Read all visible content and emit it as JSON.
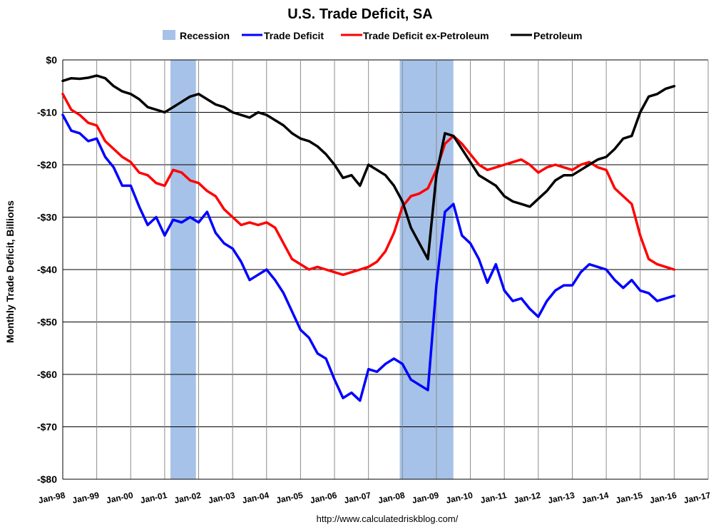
{
  "chart_data": {
    "type": "line",
    "title": "U.S. Trade Deficit, SA",
    "ylabel": "Monthly Trade Deficit, Billions",
    "xlabel": "",
    "source": "http://www.calculatedriskblog.com/",
    "ylim": [
      -80,
      0
    ],
    "y_ticks": [
      0,
      -10,
      -20,
      -30,
      -40,
      -50,
      -60,
      -70,
      -80
    ],
    "y_tick_labels": [
      "$0",
      "-$10",
      "-$20",
      "-$30",
      "-$40",
      "-$50",
      "-$60",
      "-$70",
      "-$80"
    ],
    "x_range": [
      1998.0,
      2017.0
    ],
    "x_tick_labels": [
      "Jan-98",
      "Jan-99",
      "Jan-00",
      "Jan-01",
      "Jan-02",
      "Jan-03",
      "Jan-04",
      "Jan-05",
      "Jan-06",
      "Jan-07",
      "Jan-08",
      "Jan-09",
      "Jan-10",
      "Jan-11",
      "Jan-12",
      "Jan-13",
      "Jan-14",
      "Jan-15",
      "Jan-16",
      "Jan-17"
    ],
    "grid": true,
    "legend_position": "top-center",
    "legend": [
      {
        "name": "Recession",
        "color": "#a6c2e8",
        "kind": "band"
      },
      {
        "name": "Trade Deficit",
        "color": "#0000ff",
        "kind": "line"
      },
      {
        "name": "Trade Deficit ex-Petroleum",
        "color": "#ff0000",
        "kind": "line"
      },
      {
        "name": "Petroleum",
        "color": "#000000",
        "kind": "line"
      }
    ],
    "recessions": [
      {
        "start": 2001.17,
        "end": 2001.92
      },
      {
        "start": 2007.92,
        "end": 2009.5
      }
    ],
    "series": [
      {
        "name": "Trade Deficit",
        "color": "#0000ff",
        "points": [
          [
            1998.0,
            -10.5
          ],
          [
            1998.25,
            -13.5
          ],
          [
            1998.5,
            -14.0
          ],
          [
            1998.75,
            -15.5
          ],
          [
            1999.0,
            -15.0
          ],
          [
            1999.25,
            -18.5
          ],
          [
            1999.5,
            -20.5
          ],
          [
            1999.75,
            -24.0
          ],
          [
            2000.0,
            -24.0
          ],
          [
            2000.25,
            -28.0
          ],
          [
            2000.5,
            -31.5
          ],
          [
            2000.75,
            -30.0
          ],
          [
            2001.0,
            -33.5
          ],
          [
            2001.25,
            -30.5
          ],
          [
            2001.5,
            -31.0
          ],
          [
            2001.75,
            -30.0
          ],
          [
            2002.0,
            -31.0
          ],
          [
            2002.25,
            -29.0
          ],
          [
            2002.5,
            -33.0
          ],
          [
            2002.75,
            -35.0
          ],
          [
            2003.0,
            -36.0
          ],
          [
            2003.25,
            -38.5
          ],
          [
            2003.5,
            -42.0
          ],
          [
            2003.75,
            -41.0
          ],
          [
            2004.0,
            -40.0
          ],
          [
            2004.25,
            -42.0
          ],
          [
            2004.5,
            -44.5
          ],
          [
            2004.75,
            -48.0
          ],
          [
            2005.0,
            -51.5
          ],
          [
            2005.25,
            -53.0
          ],
          [
            2005.5,
            -56.0
          ],
          [
            2005.75,
            -57.0
          ],
          [
            2006.0,
            -61.0
          ],
          [
            2006.25,
            -64.5
          ],
          [
            2006.5,
            -63.5
          ],
          [
            2006.75,
            -65.0
          ],
          [
            2007.0,
            -59.0
          ],
          [
            2007.25,
            -59.5
          ],
          [
            2007.5,
            -58.0
          ],
          [
            2007.75,
            -57.0
          ],
          [
            2008.0,
            -58.0
          ],
          [
            2008.25,
            -61.0
          ],
          [
            2008.5,
            -62.0
          ],
          [
            2008.75,
            -63.0
          ],
          [
            2009.0,
            -43.0
          ],
          [
            2009.25,
            -29.0
          ],
          [
            2009.5,
            -27.5
          ],
          [
            2009.75,
            -33.5
          ],
          [
            2010.0,
            -35.0
          ],
          [
            2010.25,
            -38.0
          ],
          [
            2010.5,
            -42.5
          ],
          [
            2010.75,
            -39.0
          ],
          [
            2011.0,
            -44.0
          ],
          [
            2011.25,
            -46.0
          ],
          [
            2011.5,
            -45.5
          ],
          [
            2011.75,
            -47.5
          ],
          [
            2012.0,
            -49.0
          ],
          [
            2012.25,
            -46.0
          ],
          [
            2012.5,
            -44.0
          ],
          [
            2012.75,
            -43.0
          ],
          [
            2013.0,
            -43.0
          ],
          [
            2013.25,
            -40.5
          ],
          [
            2013.5,
            -39.0
          ],
          [
            2013.75,
            -39.5
          ],
          [
            2014.0,
            -40.0
          ],
          [
            2014.25,
            -42.0
          ],
          [
            2014.5,
            -43.5
          ],
          [
            2014.75,
            -42.0
          ],
          [
            2015.0,
            -44.0
          ],
          [
            2015.25,
            -44.5
          ],
          [
            2015.5,
            -46.0
          ],
          [
            2015.75,
            -45.5
          ],
          [
            2016.0,
            -45.0
          ]
        ]
      },
      {
        "name": "Trade Deficit ex-Petroleum",
        "color": "#ff0000",
        "points": [
          [
            1998.0,
            -6.5
          ],
          [
            1998.25,
            -9.5
          ],
          [
            1998.5,
            -10.5
          ],
          [
            1998.75,
            -12.0
          ],
          [
            1999.0,
            -12.5
          ],
          [
            1999.25,
            -15.5
          ],
          [
            1999.5,
            -17.0
          ],
          [
            1999.75,
            -18.5
          ],
          [
            2000.0,
            -19.5
          ],
          [
            2000.25,
            -21.5
          ],
          [
            2000.5,
            -22.0
          ],
          [
            2000.75,
            -23.5
          ],
          [
            2001.0,
            -24.0
          ],
          [
            2001.25,
            -21.0
          ],
          [
            2001.5,
            -21.5
          ],
          [
            2001.75,
            -23.0
          ],
          [
            2002.0,
            -23.5
          ],
          [
            2002.25,
            -25.0
          ],
          [
            2002.5,
            -26.0
          ],
          [
            2002.75,
            -28.5
          ],
          [
            2003.0,
            -30.0
          ],
          [
            2003.25,
            -31.5
          ],
          [
            2003.5,
            -31.0
          ],
          [
            2003.75,
            -31.5
          ],
          [
            2004.0,
            -31.0
          ],
          [
            2004.25,
            -32.0
          ],
          [
            2004.5,
            -35.0
          ],
          [
            2004.75,
            -38.0
          ],
          [
            2005.0,
            -39.0
          ],
          [
            2005.25,
            -40.0
          ],
          [
            2005.5,
            -39.5
          ],
          [
            2005.75,
            -40.0
          ],
          [
            2006.0,
            -40.5
          ],
          [
            2006.25,
            -41.0
          ],
          [
            2006.5,
            -40.5
          ],
          [
            2006.75,
            -40.0
          ],
          [
            2007.0,
            -39.5
          ],
          [
            2007.25,
            -38.5
          ],
          [
            2007.5,
            -36.5
          ],
          [
            2007.75,
            -33.0
          ],
          [
            2008.0,
            -28.0
          ],
          [
            2008.25,
            -26.0
          ],
          [
            2008.5,
            -25.5
          ],
          [
            2008.75,
            -24.5
          ],
          [
            2009.0,
            -21.0
          ],
          [
            2009.25,
            -16.0
          ],
          [
            2009.5,
            -14.5
          ],
          [
            2009.75,
            -16.0
          ],
          [
            2010.0,
            -18.0
          ],
          [
            2010.25,
            -20.0
          ],
          [
            2010.5,
            -21.0
          ],
          [
            2010.75,
            -20.5
          ],
          [
            2011.0,
            -20.0
          ],
          [
            2011.25,
            -19.5
          ],
          [
            2011.5,
            -19.0
          ],
          [
            2011.75,
            -20.0
          ],
          [
            2012.0,
            -21.5
          ],
          [
            2012.25,
            -20.5
          ],
          [
            2012.5,
            -20.0
          ],
          [
            2012.75,
            -20.5
          ],
          [
            2013.0,
            -21.0
          ],
          [
            2013.25,
            -20.0
          ],
          [
            2013.5,
            -19.5
          ],
          [
            2013.75,
            -20.5
          ],
          [
            2014.0,
            -21.0
          ],
          [
            2014.25,
            -24.5
          ],
          [
            2014.5,
            -26.0
          ],
          [
            2014.75,
            -27.5
          ],
          [
            2015.0,
            -33.5
          ],
          [
            2015.25,
            -38.0
          ],
          [
            2015.5,
            -39.0
          ],
          [
            2015.75,
            -39.5
          ],
          [
            2016.0,
            -40.0
          ]
        ]
      },
      {
        "name": "Petroleum",
        "color": "#000000",
        "points": [
          [
            1998.0,
            -4.0
          ],
          [
            1998.25,
            -3.5
          ],
          [
            1998.5,
            -3.6
          ],
          [
            1998.75,
            -3.4
          ],
          [
            1999.0,
            -3.0
          ],
          [
            1999.25,
            -3.5
          ],
          [
            1999.5,
            -5.0
          ],
          [
            1999.75,
            -6.0
          ],
          [
            2000.0,
            -6.5
          ],
          [
            2000.25,
            -7.5
          ],
          [
            2000.5,
            -9.0
          ],
          [
            2000.75,
            -9.5
          ],
          [
            2001.0,
            -10.0
          ],
          [
            2001.25,
            -9.0
          ],
          [
            2001.5,
            -8.0
          ],
          [
            2001.75,
            -7.0
          ],
          [
            2002.0,
            -6.5
          ],
          [
            2002.25,
            -7.5
          ],
          [
            2002.5,
            -8.5
          ],
          [
            2002.75,
            -9.0
          ],
          [
            2003.0,
            -10.0
          ],
          [
            2003.25,
            -10.5
          ],
          [
            2003.5,
            -11.0
          ],
          [
            2003.75,
            -10.0
          ],
          [
            2004.0,
            -10.5
          ],
          [
            2004.25,
            -11.5
          ],
          [
            2004.5,
            -12.5
          ],
          [
            2004.75,
            -14.0
          ],
          [
            2005.0,
            -15.0
          ],
          [
            2005.25,
            -15.5
          ],
          [
            2005.5,
            -16.5
          ],
          [
            2005.75,
            -18.0
          ],
          [
            2006.0,
            -20.0
          ],
          [
            2006.25,
            -22.5
          ],
          [
            2006.5,
            -22.0
          ],
          [
            2006.75,
            -24.0
          ],
          [
            2007.0,
            -20.0
          ],
          [
            2007.25,
            -21.0
          ],
          [
            2007.5,
            -22.0
          ],
          [
            2007.75,
            -24.0
          ],
          [
            2008.0,
            -27.0
          ],
          [
            2008.25,
            -32.0
          ],
          [
            2008.5,
            -35.0
          ],
          [
            2008.75,
            -38.0
          ],
          [
            2009.0,
            -22.0
          ],
          [
            2009.25,
            -14.0
          ],
          [
            2009.5,
            -14.5
          ],
          [
            2009.75,
            -17.0
          ],
          [
            2010.0,
            -19.5
          ],
          [
            2010.25,
            -22.0
          ],
          [
            2010.5,
            -23.0
          ],
          [
            2010.75,
            -24.0
          ],
          [
            2011.0,
            -26.0
          ],
          [
            2011.25,
            -27.0
          ],
          [
            2011.5,
            -27.5
          ],
          [
            2011.75,
            -28.0
          ],
          [
            2012.0,
            -26.5
          ],
          [
            2012.25,
            -25.0
          ],
          [
            2012.5,
            -23.0
          ],
          [
            2012.75,
            -22.0
          ],
          [
            2013.0,
            -22.0
          ],
          [
            2013.25,
            -21.0
          ],
          [
            2013.5,
            -20.0
          ],
          [
            2013.75,
            -19.0
          ],
          [
            2014.0,
            -18.5
          ],
          [
            2014.25,
            -17.0
          ],
          [
            2014.5,
            -15.0
          ],
          [
            2014.75,
            -14.5
          ],
          [
            2015.0,
            -10.0
          ],
          [
            2015.25,
            -7.0
          ],
          [
            2015.5,
            -6.5
          ],
          [
            2015.75,
            -5.5
          ],
          [
            2016.0,
            -5.0
          ]
        ]
      }
    ]
  }
}
